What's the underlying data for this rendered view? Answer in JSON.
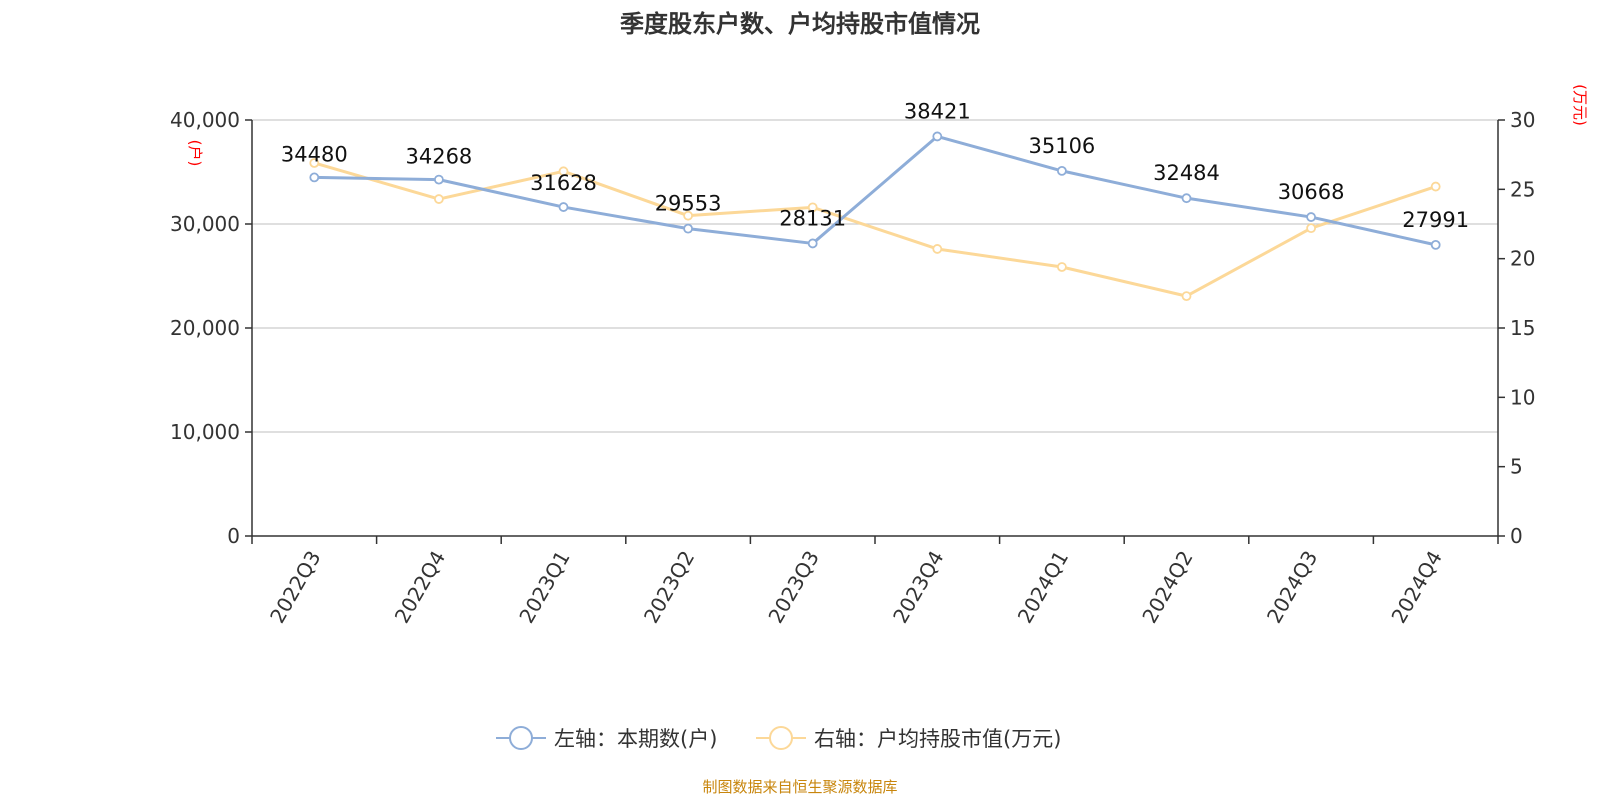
{
  "chart_data": {
    "type": "line",
    "title": "季度股东户数、户均持股市值情况",
    "categories": [
      "2022Q3",
      "2022Q4",
      "2023Q1",
      "2023Q2",
      "2023Q3",
      "2023Q4",
      "2024Q1",
      "2024Q2",
      "2024Q3",
      "2024Q4"
    ],
    "left_axis": {
      "unit": "(户)",
      "ylim": [
        0,
        40000
      ],
      "ticks": [
        "0",
        "10,000",
        "20,000",
        "30,000",
        "40,000"
      ]
    },
    "right_axis": {
      "unit": "(万元)",
      "ylim": [
        0,
        30
      ],
      "ticks": [
        "0",
        "5",
        "10",
        "15",
        "20",
        "25",
        "30"
      ]
    },
    "series": [
      {
        "name": "左轴：本期数(户)",
        "axis": "left",
        "color": "#8eadd8",
        "values": [
          34480,
          34268,
          31628,
          29553,
          28131,
          38421,
          35106,
          32484,
          30668,
          27991
        ],
        "labels": [
          "34480",
          "34268",
          "31628",
          "29553",
          "28131",
          "38421",
          "35106",
          "32484",
          "30668",
          "27991"
        ]
      },
      {
        "name": "右轴：户均持股市值(万元)",
        "axis": "right",
        "color": "#fcd898",
        "values": [
          26.9,
          24.3,
          26.3,
          23.1,
          23.7,
          20.7,
          19.4,
          17.3,
          22.2,
          25.2
        ]
      }
    ],
    "grid": true,
    "legend": "bottom-center",
    "source": "制图数据来自恒生聚源数据库"
  }
}
